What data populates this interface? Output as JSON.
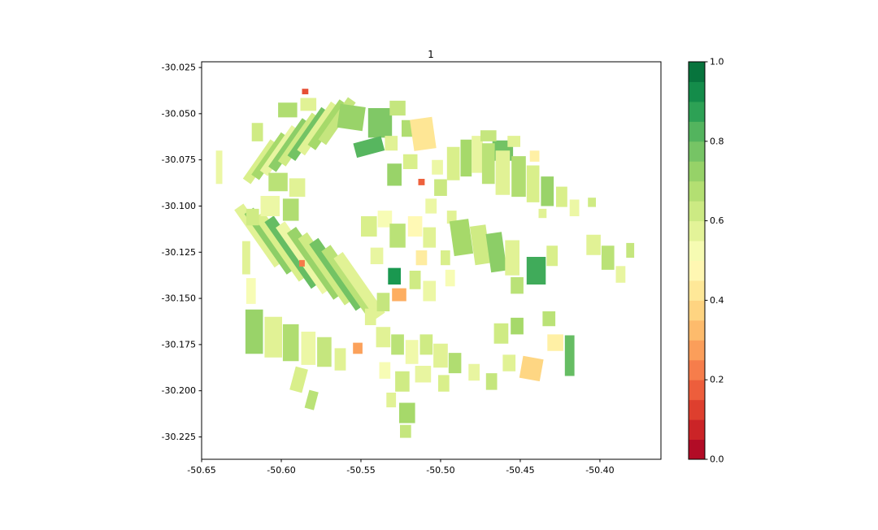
{
  "chart_data": {
    "type": "choropleth",
    "title": "1",
    "xlabel": "",
    "ylabel": "",
    "background": "#ffffff",
    "axes_border_color": "#000000",
    "xlim": [
      -50.65,
      -50.3617
    ],
    "ylim": [
      -30.2371,
      -30.0219
    ],
    "layout": {
      "grid": false,
      "colorbar_position": "right",
      "legend": false
    },
    "xticks": {
      "values": [
        -50.65,
        -50.6,
        -50.55,
        -50.5,
        -50.45,
        -50.4
      ],
      "labels": [
        "-50.65",
        "-50.60",
        "-50.55",
        "-50.50",
        "-50.45",
        "-50.40"
      ]
    },
    "yticks": {
      "values": [
        -30.025,
        -30.05,
        -30.075,
        -30.1,
        -30.125,
        -30.15,
        -30.175,
        -30.2,
        -30.225
      ],
      "labels": [
        "-30.025",
        "-30.050",
        "-30.075",
        "-30.100",
        "-30.125",
        "-30.150",
        "-30.175",
        "-30.200",
        "-30.225"
      ]
    },
    "colorbar": {
      "min": 0.0,
      "max": 1.0,
      "bands": 20,
      "colormap_name": "RdYlGn",
      "colormap_anchors": [
        "#a50026",
        "#d73027",
        "#f46d43",
        "#fdae61",
        "#fee08b",
        "#ffffbf",
        "#d9ef8b",
        "#a6d96a",
        "#66bd63",
        "#1a9850",
        "#006837"
      ],
      "ticks": {
        "values": [
          0.0,
          0.2,
          0.4,
          0.6,
          0.8,
          1.0
        ],
        "labels": [
          "0.0",
          "0.2",
          "0.4",
          "0.6",
          "0.8",
          "1.0"
        ]
      }
    },
    "parcels": [
      [
        -50.639,
        -30.079,
        0.004,
        0.018,
        0,
        0.55
      ],
      [
        -50.613,
        -30.076,
        0.006,
        0.026,
        35,
        0.6
      ],
      [
        -50.607,
        -30.073,
        0.006,
        0.028,
        35,
        0.7
      ],
      [
        -50.601,
        -30.07,
        0.006,
        0.03,
        35,
        0.56
      ],
      [
        -50.595,
        -30.067,
        0.006,
        0.032,
        35,
        0.74
      ],
      [
        -50.589,
        -30.064,
        0.006,
        0.032,
        35,
        0.62
      ],
      [
        -50.583,
        -30.061,
        0.006,
        0.032,
        35,
        0.78
      ],
      [
        -50.577,
        -30.058,
        0.006,
        0.032,
        35,
        0.58
      ],
      [
        -50.571,
        -30.056,
        0.006,
        0.03,
        35,
        0.7
      ],
      [
        -50.565,
        -30.054,
        0.006,
        0.028,
        35,
        0.64
      ],
      [
        -50.602,
        -30.087,
        0.012,
        0.01,
        0,
        0.66
      ],
      [
        -50.59,
        -30.09,
        0.01,
        0.01,
        0,
        0.58
      ],
      [
        -50.615,
        -30.06,
        0.007,
        0.01,
        0,
        0.62
      ],
      [
        -50.596,
        -30.048,
        0.012,
        0.008,
        0,
        0.68
      ],
      [
        -50.583,
        -30.045,
        0.01,
        0.007,
        0,
        0.58
      ],
      [
        -50.585,
        -30.038,
        0.004,
        0.003,
        0,
        0.15
      ],
      [
        -50.556,
        -30.052,
        0.016,
        0.013,
        8,
        0.72
      ],
      [
        -50.538,
        -30.055,
        0.015,
        0.016,
        0,
        0.76
      ],
      [
        -50.545,
        -30.068,
        0.018,
        0.008,
        -15,
        0.82
      ],
      [
        -50.527,
        -30.047,
        0.01,
        0.008,
        0,
        0.64
      ],
      [
        -50.531,
        -30.066,
        0.008,
        0.008,
        0,
        0.58
      ],
      [
        -50.521,
        -30.058,
        0.007,
        0.009,
        0,
        0.68
      ],
      [
        -50.511,
        -30.061,
        0.014,
        0.017,
        -8,
        0.42
      ],
      [
        -50.519,
        -30.076,
        0.009,
        0.008,
        0,
        0.6
      ],
      [
        -50.512,
        -30.087,
        0.004,
        0.0035,
        0,
        0.18
      ],
      [
        -50.502,
        -30.079,
        0.007,
        0.008,
        0,
        0.55
      ],
      [
        -50.5,
        -30.09,
        0.008,
        0.009,
        0,
        0.63
      ],
      [
        -50.506,
        -30.1,
        0.007,
        0.008,
        0,
        0.55
      ],
      [
        -50.529,
        -30.083,
        0.009,
        0.012,
        0,
        0.72
      ],
      [
        -50.461,
        -30.07,
        0.013,
        0.011,
        0,
        0.78
      ],
      [
        -50.492,
        -30.077,
        0.008,
        0.018,
        0,
        0.6
      ],
      [
        -50.484,
        -30.074,
        0.007,
        0.02,
        0,
        0.7
      ],
      [
        -50.477,
        -30.072,
        0.007,
        0.02,
        0,
        0.56
      ],
      [
        -50.47,
        -30.077,
        0.008,
        0.022,
        0,
        0.66
      ],
      [
        -50.461,
        -30.082,
        0.009,
        0.024,
        0,
        0.58
      ],
      [
        -50.451,
        -30.084,
        0.009,
        0.022,
        0,
        0.68
      ],
      [
        -50.442,
        -30.088,
        0.008,
        0.02,
        0,
        0.6
      ],
      [
        -50.433,
        -30.092,
        0.008,
        0.016,
        0,
        0.72
      ],
      [
        -50.441,
        -30.073,
        0.006,
        0.006,
        0,
        0.45
      ],
      [
        -50.47,
        -30.062,
        0.01,
        0.006,
        0,
        0.64
      ],
      [
        -50.454,
        -30.065,
        0.008,
        0.006,
        0,
        0.58
      ],
      [
        -50.424,
        -30.095,
        0.007,
        0.011,
        0,
        0.6
      ],
      [
        -50.416,
        -30.101,
        0.006,
        0.009,
        0,
        0.55
      ],
      [
        -50.436,
        -30.104,
        0.005,
        0.005,
        0,
        0.58
      ],
      [
        -50.405,
        -30.098,
        0.005,
        0.005,
        0,
        0.62
      ],
      [
        -50.493,
        -30.106,
        0.006,
        0.007,
        0,
        0.58
      ],
      [
        -50.614,
        -30.116,
        0.007,
        0.038,
        -35,
        0.58
      ],
      [
        -50.607,
        -30.119,
        0.007,
        0.04,
        -35,
        0.74
      ],
      [
        -50.6,
        -30.122,
        0.007,
        0.042,
        -35,
        0.6
      ],
      [
        -50.593,
        -30.125,
        0.007,
        0.044,
        -35,
        0.8
      ],
      [
        -50.586,
        -30.128,
        0.007,
        0.044,
        -35,
        0.55
      ],
      [
        -50.579,
        -30.131,
        0.007,
        0.044,
        -35,
        0.72
      ],
      [
        -50.572,
        -30.134,
        0.007,
        0.044,
        -35,
        0.62
      ],
      [
        -50.565,
        -30.137,
        0.007,
        0.044,
        -35,
        0.78
      ],
      [
        -50.558,
        -30.14,
        0.007,
        0.042,
        -35,
        0.66
      ],
      [
        -50.551,
        -30.143,
        0.007,
        0.04,
        -35,
        0.58
      ],
      [
        -50.607,
        -30.1,
        0.012,
        0.011,
        0,
        0.55
      ],
      [
        -50.594,
        -30.102,
        0.01,
        0.012,
        0,
        0.68
      ],
      [
        -50.618,
        -30.106,
        0.008,
        0.009,
        0,
        0.62
      ],
      [
        -50.587,
        -30.131,
        0.0035,
        0.0035,
        0,
        0.22
      ],
      [
        -50.622,
        -30.128,
        0.005,
        0.018,
        0,
        0.58
      ],
      [
        -50.619,
        -30.146,
        0.006,
        0.014,
        0,
        0.52
      ],
      [
        -50.617,
        -30.168,
        0.011,
        0.024,
        0,
        0.72
      ],
      [
        -50.605,
        -30.171,
        0.011,
        0.022,
        0,
        0.58
      ],
      [
        -50.594,
        -30.174,
        0.01,
        0.02,
        0,
        0.68
      ],
      [
        -50.583,
        -30.177,
        0.009,
        0.018,
        0,
        0.55
      ],
      [
        -50.573,
        -30.179,
        0.009,
        0.016,
        0,
        0.64
      ],
      [
        -50.589,
        -30.194,
        0.008,
        0.013,
        15,
        0.6
      ],
      [
        -50.581,
        -30.205,
        0.006,
        0.01,
        15,
        0.66
      ],
      [
        -50.563,
        -30.183,
        0.007,
        0.012,
        0,
        0.58
      ],
      [
        -50.552,
        -30.177,
        0.006,
        0.006,
        0,
        0.28
      ],
      [
        -50.545,
        -30.111,
        0.01,
        0.011,
        0,
        0.6
      ],
      [
        -50.535,
        -30.107,
        0.009,
        0.009,
        0,
        0.52
      ],
      [
        -50.527,
        -30.116,
        0.01,
        0.013,
        0,
        0.66
      ],
      [
        -50.516,
        -30.111,
        0.009,
        0.011,
        0,
        0.48
      ],
      [
        -50.507,
        -30.117,
        0.008,
        0.011,
        0,
        0.58
      ],
      [
        -50.512,
        -30.128,
        0.007,
        0.008,
        0,
        0.44
      ],
      [
        -50.54,
        -30.127,
        0.008,
        0.009,
        0,
        0.56
      ],
      [
        -50.529,
        -30.138,
        0.008,
        0.009,
        0,
        0.9
      ],
      [
        -50.526,
        -30.148,
        0.009,
        0.007,
        0,
        0.3
      ],
      [
        -50.516,
        -30.14,
        0.007,
        0.01,
        0,
        0.62
      ],
      [
        -50.507,
        -30.146,
        0.008,
        0.011,
        0,
        0.55
      ],
      [
        -50.536,
        -30.152,
        0.008,
        0.01,
        0,
        0.64
      ],
      [
        -50.544,
        -30.16,
        0.007,
        0.009,
        0,
        0.58
      ],
      [
        -50.497,
        -30.128,
        0.006,
        0.008,
        0,
        0.6
      ],
      [
        -50.494,
        -30.139,
        0.006,
        0.009,
        0,
        0.52
      ],
      [
        -50.487,
        -30.117,
        0.012,
        0.019,
        -8,
        0.7
      ],
      [
        -50.475,
        -30.121,
        0.01,
        0.021,
        -8,
        0.62
      ],
      [
        -50.465,
        -30.125,
        0.01,
        0.021,
        -8,
        0.74
      ],
      [
        -50.455,
        -30.128,
        0.009,
        0.019,
        0,
        0.58
      ],
      [
        -50.44,
        -30.135,
        0.012,
        0.015,
        0,
        0.85
      ],
      [
        -50.452,
        -30.143,
        0.008,
        0.009,
        0,
        0.66
      ],
      [
        -50.43,
        -30.127,
        0.007,
        0.011,
        0,
        0.6
      ],
      [
        -50.404,
        -30.121,
        0.009,
        0.011,
        0,
        0.58
      ],
      [
        -50.395,
        -30.128,
        0.008,
        0.013,
        0,
        0.66
      ],
      [
        -50.387,
        -30.137,
        0.006,
        0.009,
        0,
        0.56
      ],
      [
        -50.381,
        -30.124,
        0.005,
        0.008,
        0,
        0.64
      ],
      [
        -50.536,
        -30.171,
        0.009,
        0.011,
        0,
        0.58
      ],
      [
        -50.527,
        -30.175,
        0.008,
        0.011,
        0,
        0.66
      ],
      [
        -50.518,
        -30.179,
        0.008,
        0.013,
        0,
        0.54
      ],
      [
        -50.509,
        -30.175,
        0.008,
        0.011,
        0,
        0.62
      ],
      [
        -50.5,
        -30.181,
        0.009,
        0.013,
        0,
        0.58
      ],
      [
        -50.491,
        -30.185,
        0.008,
        0.011,
        0,
        0.68
      ],
      [
        -50.511,
        -30.191,
        0.01,
        0.009,
        0,
        0.56
      ],
      [
        -50.524,
        -30.195,
        0.009,
        0.011,
        0,
        0.62
      ],
      [
        -50.535,
        -30.189,
        0.007,
        0.009,
        0,
        0.52
      ],
      [
        -50.498,
        -30.196,
        0.007,
        0.009,
        0,
        0.6
      ],
      [
        -50.462,
        -30.169,
        0.009,
        0.011,
        0,
        0.62
      ],
      [
        -50.452,
        -30.165,
        0.008,
        0.009,
        0,
        0.7
      ],
      [
        -50.428,
        -30.174,
        0.01,
        0.009,
        0,
        0.45
      ],
      [
        -50.443,
        -30.188,
        0.013,
        0.012,
        10,
        0.38
      ],
      [
        -50.457,
        -30.185,
        0.008,
        0.009,
        0,
        0.58
      ],
      [
        -50.419,
        -30.181,
        0.006,
        0.022,
        0,
        0.8
      ],
      [
        -50.432,
        -30.161,
        0.008,
        0.008,
        0,
        0.66
      ],
      [
        -50.468,
        -30.195,
        0.007,
        0.009,
        0,
        0.64
      ],
      [
        -50.479,
        -30.19,
        0.007,
        0.009,
        0,
        0.56
      ],
      [
        -50.521,
        -30.212,
        0.01,
        0.011,
        0,
        0.7
      ],
      [
        -50.522,
        -30.222,
        0.007,
        0.007,
        0,
        0.64
      ],
      [
        -50.531,
        -30.205,
        0.006,
        0.008,
        0,
        0.58
      ]
    ]
  }
}
